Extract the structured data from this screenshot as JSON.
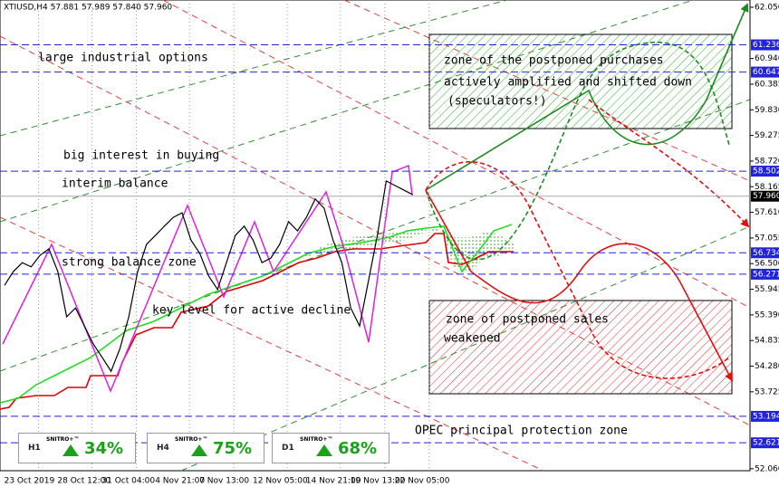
{
  "chart_data": {
    "type": "line",
    "title": "XTIUSD,H4 57.881 57.989 57.840 57.960",
    "categories": [
      null,
      null,
      "23 Oct 2019",
      null,
      null,
      null,
      null,
      null,
      "28 Oct 12:00",
      null,
      null,
      null,
      null,
      "31 Oct 04:00",
      null,
      null,
      null,
      null,
      null,
      "4 Nov 21:00",
      null,
      null,
      null,
      null,
      "7 Nov 13:00",
      null,
      null,
      null,
      null,
      null,
      "12 Nov 05:00",
      null,
      null,
      null,
      null,
      null,
      "14 Nov 21:00",
      null,
      null,
      null,
      null,
      "19 Nov 13:00",
      null,
      null,
      null,
      null,
      "22 Nov 05:00"
    ],
    "series": [
      {
        "name": "XTIUSD",
        "color": "#000000",
        "values": [
          56.03,
          56.33,
          56.52,
          56.43,
          56.68,
          56.82,
          56.33,
          55.35,
          55.54,
          55.15,
          54.76,
          54.47,
          54.17,
          54.66,
          55.35,
          56.33,
          56.92,
          57.11,
          57.31,
          57.5,
          57.6,
          57.01,
          56.72,
          56.23,
          55.94,
          56.52,
          57.11,
          57.31,
          57.01,
          56.52,
          56.62,
          56.92,
          57.41,
          57.21,
          57.5,
          57.9,
          57.7,
          57.01,
          56.52,
          55.54,
          55.15,
          56.13,
          57.11,
          58.29,
          58.19,
          58.09,
          57.99
        ]
      }
    ],
    "ylim": [
      52.017,
      62.207
    ],
    "yticks": [
      {
        "value": 62.05,
        "label": "62.050"
      },
      {
        "value": 60.94,
        "label": "60.940"
      },
      {
        "value": 60.385,
        "label": "60.385"
      },
      {
        "value": 59.83,
        "label": "59.830"
      },
      {
        "value": 59.275,
        "label": "59.275"
      },
      {
        "value": 58.72,
        "label": "58.720"
      },
      58.165,
      {
        "value": 57.61,
        "label": "57.610"
      },
      57.055,
      {
        "value": 56.5,
        "label": "56.500"
      },
      55.945,
      {
        "value": 55.39,
        "label": "55.390"
      },
      54.835,
      {
        "value": 54.28,
        "label": "54.280"
      },
      53.725,
      {
        "value": 52.06,
        "label": "52.060"
      }
    ],
    "levels": [
      61.236,
      60.647,
      58.502,
      56.734,
      56.271,
      53.194,
      52.621
    ],
    "level_color": "#2323d8",
    "current_price": {
      "value": 57.96,
      "label": "57.960"
    },
    "annotations": [
      "large industrial options",
      "big interest in buying",
      "interim balance",
      "strong balance zone",
      "key level for active decline",
      "zone of the postponed purchases",
      "actively amplified and shifted down",
      "(speculators!)",
      "zone of postponed sales",
      "weakened",
      "OPEC principal protection zone"
    ]
  },
  "widgets": [
    {
      "timeframe": "H1",
      "name": "SNITRO+™",
      "value": "34%"
    },
    {
      "timeframe": "H4",
      "name": "SNITRO+™",
      "value": "75%"
    },
    {
      "timeframe": "D1",
      "name": "SNITRO+™",
      "value": "68%"
    }
  ]
}
